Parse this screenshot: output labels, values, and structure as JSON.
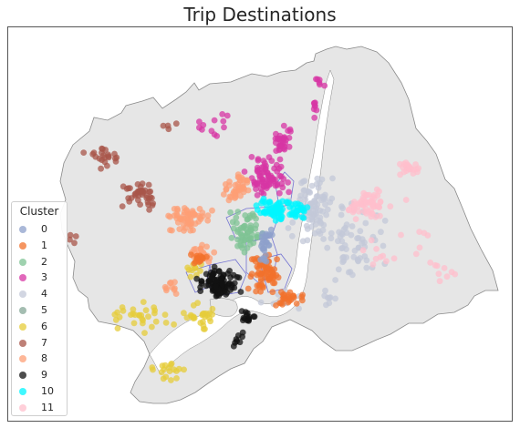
{
  "title": "Trip Destinations",
  "legend": {
    "title": "Cluster",
    "items": [
      {
        "label": "0",
        "color": "#8da0cb"
      },
      {
        "label": "1",
        "color": "#f2722c"
      },
      {
        "label": "2",
        "color": "#7fc394"
      },
      {
        "label": "3",
        "color": "#d735a4"
      },
      {
        "label": "4",
        "color": "#c3c8d8"
      },
      {
        "label": "5",
        "color": "#86a797"
      },
      {
        "label": "6",
        "color": "#e6cc3a"
      },
      {
        "label": "7",
        "color": "#a8554a"
      },
      {
        "label": "8",
        "color": "#fd9f76"
      },
      {
        "label": "9",
        "color": "#111111"
      },
      {
        "label": "10",
        "color": "#00f5ff"
      },
      {
        "label": "11",
        "color": "#ffbfcc"
      }
    ]
  },
  "map_colors": {
    "land": "#e6e6e6",
    "outline": "#8a8a8a",
    "water": "#ffffff",
    "districts": "#4d4dcc"
  },
  "chart_data": {
    "type": "scatter",
    "title": "Trip Destinations",
    "legend_title": "Cluster",
    "legend_position": "lower-left",
    "grid": false,
    "series": [
      {
        "name": "0",
        "color": "#8da0cb"
      },
      {
        "name": "1",
        "color": "#f2722c"
      },
      {
        "name": "2",
        "color": "#7fc394"
      },
      {
        "name": "3",
        "color": "#d735a4"
      },
      {
        "name": "4",
        "color": "#c3c8d8"
      },
      {
        "name": "5",
        "color": "#86a797"
      },
      {
        "name": "6",
        "color": "#e6cc3a"
      },
      {
        "name": "7",
        "color": "#a8554a"
      },
      {
        "name": "8",
        "color": "#fd9f76"
      },
      {
        "name": "9",
        "color": "#111111"
      },
      {
        "name": "10",
        "color": "#00f5ff"
      },
      {
        "name": "11",
        "color": "#ffbfcc"
      }
    ]
  }
}
